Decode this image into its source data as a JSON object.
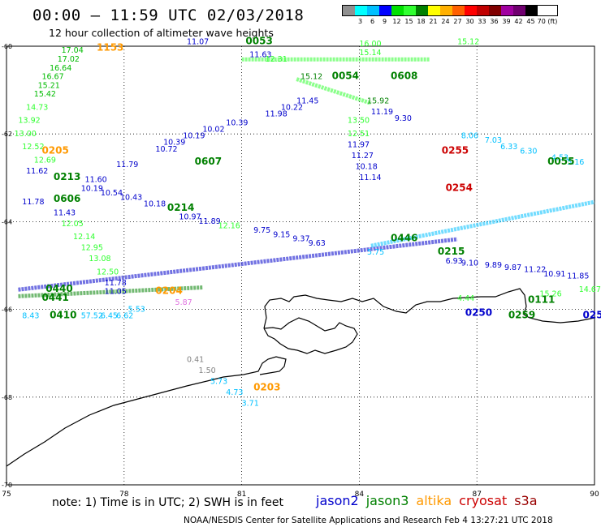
{
  "header": {
    "title": "00:00 – 11:59 UTC 02/03/2018",
    "subtitle": "12 hour collection of altimeter wave heights"
  },
  "legend": {
    "colors": [
      "#909090",
      "#00ffff",
      "#00c0ff",
      "#0000ff",
      "#00e000",
      "#30ff30",
      "#008000",
      "#ffff00",
      "#ffb000",
      "#ff6000",
      "#ff0000",
      "#c00000",
      "#800000",
      "#a000a0",
      "#700070",
      "#000000"
    ],
    "labels": [
      "",
      "3",
      "6",
      "9",
      "12",
      "15",
      "18",
      "21",
      "24",
      "27",
      "30",
      "33",
      "36",
      "39",
      "42",
      "45",
      "70 (ft)"
    ]
  },
  "axes": {
    "x_ticks": [
      "75",
      "78",
      "81",
      "84",
      "87",
      "90"
    ],
    "y_ticks": [
      "-60",
      "-62",
      "-64",
      "-66",
      "-68",
      "-70"
    ]
  },
  "satellites": [
    {
      "name": "jason2",
      "color": "#0000cc"
    },
    {
      "name": "jason3",
      "color": "#008000"
    },
    {
      "name": "altika",
      "color": "#ff9900"
    },
    {
      "name": "cryosat",
      "color": "#cc0000"
    },
    {
      "name": "s3a",
      "color": "#990000"
    }
  ],
  "footer": {
    "note": "note: 1) Time is in UTC; 2) SWH is in feet",
    "credit": "NOAA/NESDIS Center for Satellite Applications and Research   Feb  4 13:27:21 UTC 2018"
  },
  "map": {
    "pass_labels": [
      {
        "text": "1153",
        "lon": 77.3,
        "lat": -60.1,
        "color": "#ff9900"
      },
      {
        "text": "0053",
        "lon": 81.1,
        "lat": -59.95,
        "color": "#008000"
      },
      {
        "text": "0054",
        "lon": 83.3,
        "lat": -60.75,
        "color": "#008000"
      },
      {
        "text": "0608",
        "lon": 84.8,
        "lat": -60.75,
        "color": "#008000"
      },
      {
        "text": "0205",
        "lon": 75.9,
        "lat": -62.45,
        "color": "#ff9900"
      },
      {
        "text": "0255",
        "lon": 86.1,
        "lat": -62.45,
        "color": "#cc0000"
      },
      {
        "text": "0607",
        "lon": 79.8,
        "lat": -62.7,
        "color": "#008000"
      },
      {
        "text": "0055",
        "lon": 88.8,
        "lat": -62.7,
        "color": "#008000"
      },
      {
        "text": "0213",
        "lon": 76.2,
        "lat": -63.05,
        "color": "#008000"
      },
      {
        "text": "0254",
        "lon": 86.2,
        "lat": -63.3,
        "color": "#cc0000"
      },
      {
        "text": "0606",
        "lon": 76.2,
        "lat": -63.55,
        "color": "#008000"
      },
      {
        "text": "0214",
        "lon": 79.1,
        "lat": -63.75,
        "color": "#008000"
      },
      {
        "text": "0446",
        "lon": 84.8,
        "lat": -64.45,
        "color": "#008000"
      },
      {
        "text": "0215",
        "lon": 86.0,
        "lat": -64.75,
        "color": "#008000"
      },
      {
        "text": "0204",
        "lon": 78.8,
        "lat": -65.65,
        "color": "#ff9900"
      },
      {
        "text": "0440",
        "lon": 76.0,
        "lat": -65.6,
        "color": "#008000"
      },
      {
        "text": "0441",
        "lon": 75.9,
        "lat": -65.8,
        "color": "#008000"
      },
      {
        "text": "0111",
        "lon": 88.3,
        "lat": -65.85,
        "color": "#008000"
      },
      {
        "text": "0410",
        "lon": 76.1,
        "lat": -66.2,
        "color": "#008000"
      },
      {
        "text": "0250",
        "lon": 86.7,
        "lat": -66.15,
        "color": "#0000cc"
      },
      {
        "text": "0259",
        "lon": 87.8,
        "lat": -66.2,
        "color": "#008000"
      },
      {
        "text": "0252",
        "lon": 89.7,
        "lat": -66.2,
        "color": "#0000cc"
      },
      {
        "text": "0203",
        "lon": 81.3,
        "lat": -67.85,
        "color": "#ff9900"
      }
    ],
    "swh_labels": [
      {
        "text": "17.04",
        "lon": 76.4,
        "lat": -60.15,
        "color": "#00bb00"
      },
      {
        "text": "17.02",
        "lon": 76.3,
        "lat": -60.35,
        "color": "#00bb00"
      },
      {
        "text": "16.64",
        "lon": 76.1,
        "lat": -60.55,
        "color": "#00bb00"
      },
      {
        "text": "16.67",
        "lon": 75.9,
        "lat": -60.75,
        "color": "#00bb00"
      },
      {
        "text": "15.21",
        "lon": 75.8,
        "lat": -60.95,
        "color": "#00bb00"
      },
      {
        "text": "15.42",
        "lon": 75.7,
        "lat": -61.15,
        "color": "#00bb00"
      },
      {
        "text": "14.73",
        "lon": 75.5,
        "lat": -61.45,
        "color": "#30ff30"
      },
      {
        "text": "13.92",
        "lon": 75.3,
        "lat": -61.75,
        "color": "#30ff30"
      },
      {
        "text": "13.00",
        "lon": 75.2,
        "lat": -62.05,
        "color": "#30ff30"
      },
      {
        "text": "12.52",
        "lon": 75.4,
        "lat": -62.35,
        "color": "#30ff30"
      },
      {
        "text": "12.69",
        "lon": 75.7,
        "lat": -62.65,
        "color": "#30ff30"
      },
      {
        "text": "11.62",
        "lon": 75.5,
        "lat": -62.9,
        "color": "#0000cc"
      },
      {
        "text": "11.78",
        "lon": 75.4,
        "lat": -63.6,
        "color": "#0000cc"
      },
      {
        "text": "11.43",
        "lon": 76.2,
        "lat": -63.85,
        "color": "#0000cc"
      },
      {
        "text": "12.05",
        "lon": 76.4,
        "lat": -64.1,
        "color": "#30ff30"
      },
      {
        "text": "12.14",
        "lon": 76.7,
        "lat": -64.4,
        "color": "#30ff30"
      },
      {
        "text": "12.95",
        "lon": 76.9,
        "lat": -64.65,
        "color": "#30ff30"
      },
      {
        "text": "13.08",
        "lon": 77.1,
        "lat": -64.9,
        "color": "#30ff30"
      },
      {
        "text": "12.50",
        "lon": 77.3,
        "lat": -65.2,
        "color": "#30ff30"
      },
      {
        "text": "11.78",
        "lon": 77.5,
        "lat": -65.45,
        "color": "#0000cc"
      },
      {
        "text": "11.07",
        "lon": 79.6,
        "lat": -59.95,
        "color": "#0000cc"
      },
      {
        "text": "11.63",
        "lon": 81.2,
        "lat": -60.25,
        "color": "#0000cc"
      },
      {
        "text": "12.31",
        "lon": 81.6,
        "lat": -60.35,
        "color": "#30ff30"
      },
      {
        "text": "15.12",
        "lon": 82.5,
        "lat": -60.75,
        "color": "#008000"
      },
      {
        "text": "11.45",
        "lon": 82.4,
        "lat": -61.3,
        "color": "#0000cc"
      },
      {
        "text": "10.22",
        "lon": 82.0,
        "lat": -61.45,
        "color": "#0000cc"
      },
      {
        "text": "11.98",
        "lon": 81.6,
        "lat": -61.6,
        "color": "#0000cc"
      },
      {
        "text": "10.39",
        "lon": 80.6,
        "lat": -61.8,
        "color": "#0000cc"
      },
      {
        "text": "10.02",
        "lon": 80.0,
        "lat": -61.95,
        "color": "#0000cc"
      },
      {
        "text": "10.19",
        "lon": 79.5,
        "lat": -62.1,
        "color": "#0000cc"
      },
      {
        "text": "10.39",
        "lon": 79.0,
        "lat": -62.25,
        "color": "#0000cc"
      },
      {
        "text": "10.72",
        "lon": 78.8,
        "lat": -62.4,
        "color": "#0000cc"
      },
      {
        "text": "11.79",
        "lon": 77.8,
        "lat": -62.75,
        "color": "#0000cc"
      },
      {
        "text": "11.60",
        "lon": 77.0,
        "lat": -63.1,
        "color": "#0000cc"
      },
      {
        "text": "10.19",
        "lon": 76.9,
        "lat": -63.3,
        "color": "#0000cc"
      },
      {
        "text": "10.54",
        "lon": 77.4,
        "lat": -63.4,
        "color": "#0000cc"
      },
      {
        "text": "10.43",
        "lon": 77.9,
        "lat": -63.5,
        "color": "#0000cc"
      },
      {
        "text": "10.18",
        "lon": 78.5,
        "lat": -63.65,
        "color": "#0000cc"
      },
      {
        "text": "10.97",
        "lon": 79.4,
        "lat": -63.95,
        "color": "#0000cc"
      },
      {
        "text": "11.89",
        "lon": 79.9,
        "lat": -64.05,
        "color": "#0000cc"
      },
      {
        "text": "12.16",
        "lon": 80.4,
        "lat": -64.15,
        "color": "#30ff30"
      },
      {
        "text": "9.75",
        "lon": 81.3,
        "lat": -64.25,
        "color": "#0000cc"
      },
      {
        "text": "9.15",
        "lon": 81.8,
        "lat": -64.35,
        "color": "#0000cc"
      },
      {
        "text": "9.37",
        "lon": 82.3,
        "lat": -64.45,
        "color": "#0000cc"
      },
      {
        "text": "9.63",
        "lon": 82.7,
        "lat": -64.55,
        "color": "#0000cc"
      },
      {
        "text": "16.00",
        "lon": 84.0,
        "lat": -60.0,
        "color": "#30ff30"
      },
      {
        "text": "15.14",
        "lon": 84.0,
        "lat": -60.2,
        "color": "#30ff30"
      },
      {
        "text": "15.12",
        "lon": 86.5,
        "lat": -59.95,
        "color": "#30ff30"
      },
      {
        "text": "15.92",
        "lon": 84.2,
        "lat": -61.3,
        "color": "#008000"
      },
      {
        "text": "11.19",
        "lon": 84.3,
        "lat": -61.55,
        "color": "#0000cc"
      },
      {
        "text": "9.30",
        "lon": 84.9,
        "lat": -61.7,
        "color": "#0000cc"
      },
      {
        "text": "13.50",
        "lon": 83.7,
        "lat": -61.75,
        "color": "#30ff30"
      },
      {
        "text": "12.51",
        "lon": 83.7,
        "lat": -62.05,
        "color": "#30ff30"
      },
      {
        "text": "11.97",
        "lon": 83.7,
        "lat": -62.3,
        "color": "#0000cc"
      },
      {
        "text": "11.27",
        "lon": 83.8,
        "lat": -62.55,
        "color": "#0000cc"
      },
      {
        "text": "10.18",
        "lon": 83.9,
        "lat": -62.8,
        "color": "#0000cc"
      },
      {
        "text": "11.14",
        "lon": 84.0,
        "lat": -63.05,
        "color": "#0000cc"
      },
      {
        "text": "8.06",
        "lon": 86.6,
        "lat": -62.1,
        "color": "#00c0ff"
      },
      {
        "text": "7.03",
        "lon": 87.2,
        "lat": -62.2,
        "color": "#00c0ff"
      },
      {
        "text": "6.33",
        "lon": 87.6,
        "lat": -62.35,
        "color": "#00c0ff"
      },
      {
        "text": "6.30",
        "lon": 88.1,
        "lat": -62.45,
        "color": "#00c0ff"
      },
      {
        "text": "4.53",
        "lon": 88.9,
        "lat": -62.6,
        "color": "#00c0ff"
      },
      {
        "text": "5.16",
        "lon": 89.3,
        "lat": -62.7,
        "color": "#00c0ff"
      },
      {
        "text": "5.75",
        "lon": 84.2,
        "lat": -64.75,
        "color": "#00c0ff"
      },
      {
        "text": "6.93",
        "lon": 86.2,
        "lat": -64.95,
        "color": "#0000cc"
      },
      {
        "text": "9.10",
        "lon": 86.6,
        "lat": -65.0,
        "color": "#0000cc"
      },
      {
        "text": "9.89",
        "lon": 87.2,
        "lat": -65.05,
        "color": "#0000cc"
      },
      {
        "text": "9.87",
        "lon": 87.7,
        "lat": -65.1,
        "color": "#0000cc"
      },
      {
        "text": "11.22",
        "lon": 88.2,
        "lat": -65.15,
        "color": "#0000cc"
      },
      {
        "text": "10.91",
        "lon": 88.7,
        "lat": -65.25,
        "color": "#0000cc"
      },
      {
        "text": "11.85",
        "lon": 89.3,
        "lat": -65.3,
        "color": "#0000cc"
      },
      {
        "text": "4.44",
        "lon": 86.5,
        "lat": -65.8,
        "color": "#30ff30"
      },
      {
        "text": "15.26",
        "lon": 88.6,
        "lat": -65.7,
        "color": "#30ff30"
      },
      {
        "text": "14.67",
        "lon": 89.6,
        "lat": -65.6,
        "color": "#30ff30"
      },
      {
        "text": "11.05",
        "lon": 77.5,
        "lat": -65.65,
        "color": "#0000cc"
      },
      {
        "text": "5.53",
        "lon": 78.1,
        "lat": -66.05,
        "color": "#00c0ff"
      },
      {
        "text": "5.87",
        "lon": 79.3,
        "lat": -65.9,
        "color": "#e070e0"
      },
      {
        "text": "8.43",
        "lon": 75.4,
        "lat": -66.2,
        "color": "#00c0ff"
      },
      {
        "text": "57.52",
        "lon": 76.9,
        "lat": -66.2,
        "color": "#00c0ff"
      },
      {
        "text": "6.45",
        "lon": 77.4,
        "lat": -66.2,
        "color": "#00c0ff"
      },
      {
        "text": "6.62",
        "lon": 77.8,
        "lat": -66.2,
        "color": "#00c0ff"
      },
      {
        "text": "0.41",
        "lon": 79.6,
        "lat": -67.2,
        "color": "#808080"
      },
      {
        "text": "1.50",
        "lon": 79.9,
        "lat": -67.45,
        "color": "#808080"
      },
      {
        "text": "5.73",
        "lon": 80.2,
        "lat": -67.7,
        "color": "#00c0ff"
      },
      {
        "text": "4.73",
        "lon": 80.6,
        "lat": -67.95,
        "color": "#00c0ff"
      },
      {
        "text": "3.71",
        "lon": 81.0,
        "lat": -68.2,
        "color": "#00c0ff"
      }
    ]
  }
}
